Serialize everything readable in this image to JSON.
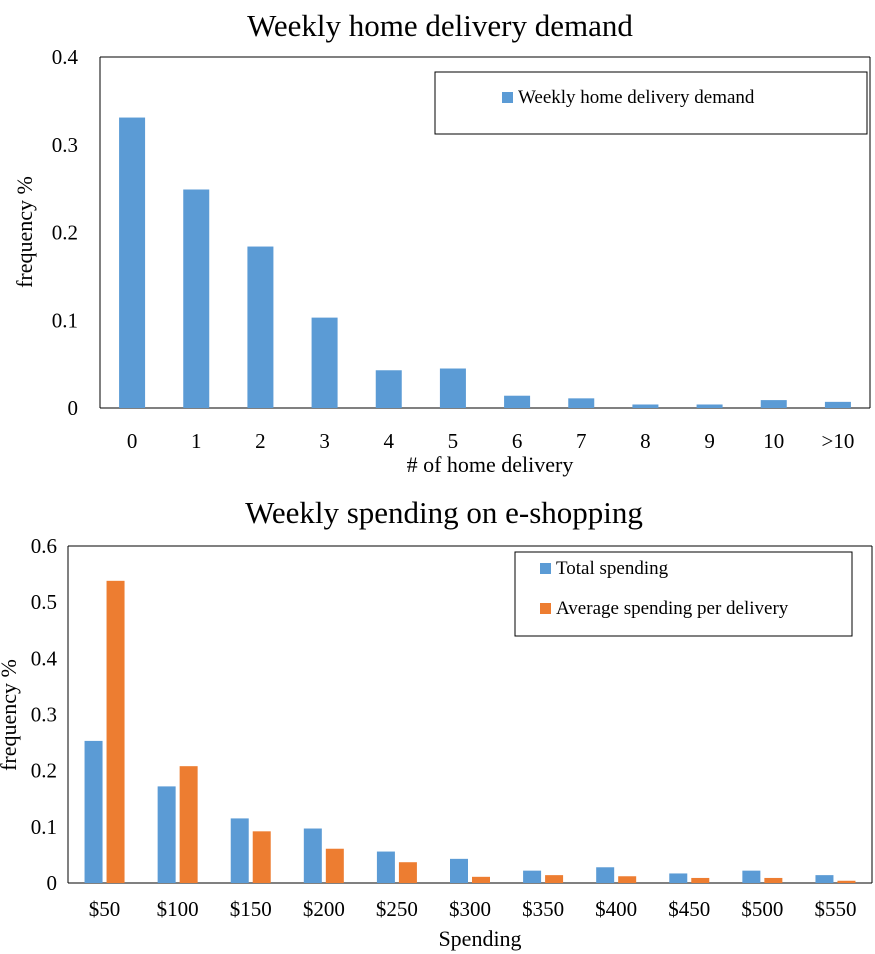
{
  "colors": {
    "blue": "#5b9bd5",
    "orange": "#ed7d31",
    "axis": "#000000",
    "background": "#ffffff"
  },
  "chart_data": [
    {
      "type": "bar",
      "title": "Weekly home delivery demand",
      "xlabel": "# of home delivery",
      "ylabel": "frequency %",
      "categories": [
        "0",
        "1",
        "2",
        "3",
        "4",
        "5",
        "6",
        "7",
        "8",
        "9",
        "10",
        ">10"
      ],
      "series": [
        {
          "name": "Weekly home delivery demand",
          "color": "#5b9bd5",
          "values": [
            0.331,
            0.249,
            0.184,
            0.103,
            0.043,
            0.045,
            0.014,
            0.011,
            0.004,
            0.004,
            0.009,
            0.007
          ]
        }
      ],
      "ylim": [
        0,
        0.4
      ],
      "yticks": [
        "0",
        "0.1",
        "0.2",
        "0.3",
        "0.4"
      ],
      "ytick_values": [
        0,
        0.1,
        0.2,
        0.3,
        0.4
      ],
      "grid": false,
      "legend_position": "top-right"
    },
    {
      "type": "bar",
      "title": "Weekly spending on e-shopping",
      "xlabel": "Spending",
      "ylabel": "frequency %",
      "categories": [
        "$50",
        "$100",
        "$150",
        "$200",
        "$250",
        "$300",
        "$350",
        "$400",
        "$450",
        "$500",
        "$550"
      ],
      "series": [
        {
          "name": "Total spending",
          "color": "#5b9bd5",
          "values": [
            0.253,
            0.172,
            0.115,
            0.097,
            0.056,
            0.043,
            0.022,
            0.028,
            0.017,
            0.022,
            0.014
          ]
        },
        {
          "name": "Average spending per delivery",
          "color": "#ed7d31",
          "values": [
            0.538,
            0.208,
            0.092,
            0.061,
            0.037,
            0.011,
            0.014,
            0.012,
            0.009,
            0.009,
            0.004
          ]
        }
      ],
      "ylim": [
        0,
        0.6
      ],
      "yticks": [
        "0",
        "0.1",
        "0.2",
        "0.3",
        "0.4",
        "0.5",
        "0.6"
      ],
      "ytick_values": [
        0,
        0.1,
        0.2,
        0.3,
        0.4,
        0.5,
        0.6
      ],
      "grid": false,
      "legend_position": "top-right"
    }
  ]
}
